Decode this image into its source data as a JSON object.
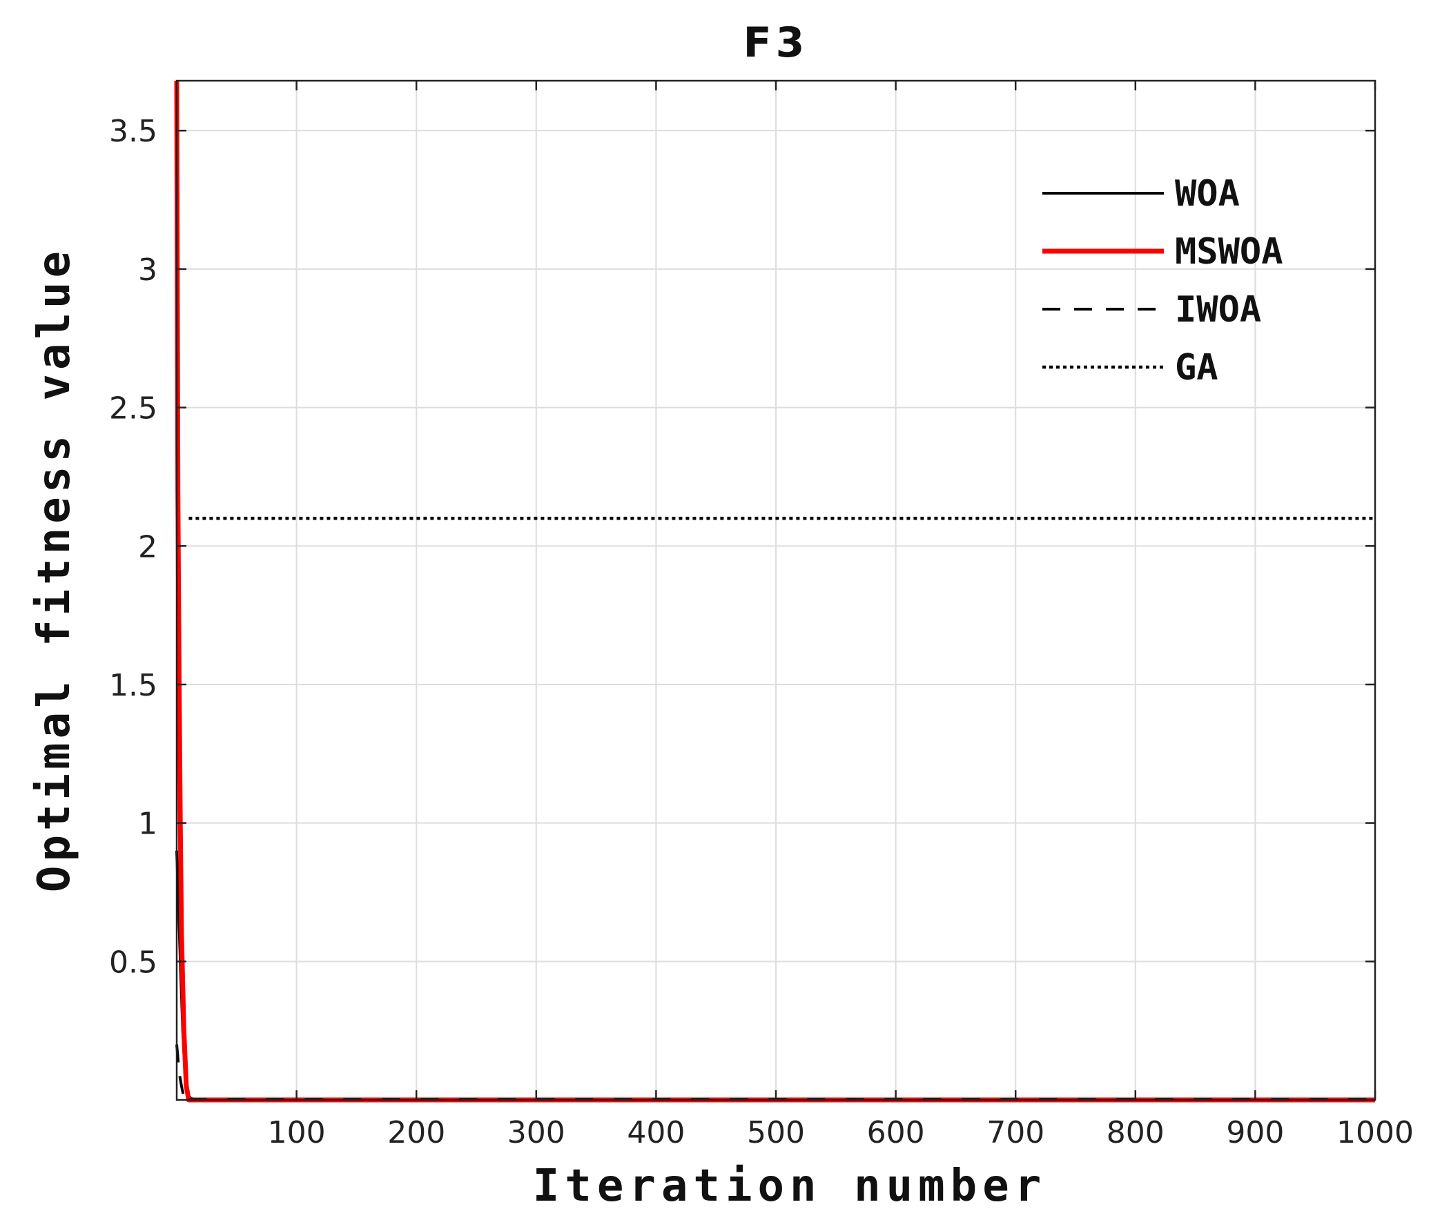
{
  "chart_data": {
    "type": "line",
    "title": "F3",
    "xlabel": "Iteration number",
    "ylabel": "Optimal fitness value",
    "xlim": [
      0,
      1000
    ],
    "ylim": [
      0,
      3.68
    ],
    "x_ticks": [
      100,
      200,
      300,
      400,
      500,
      600,
      700,
      800,
      900,
      1000
    ],
    "y_ticks": [
      0.5,
      1,
      1.5,
      2,
      2.5,
      3,
      3.5
    ],
    "x_tick_labels": [
      "100",
      "200",
      "300",
      "400",
      "500",
      "600",
      "700",
      "800",
      "900",
      "1000"
    ],
    "y_tick_labels": [
      "0.5",
      "1",
      "1.5",
      "2",
      "2.5",
      "3",
      "3.5"
    ],
    "grid": true,
    "legend_position": "top-right",
    "series": [
      {
        "name": "WOA",
        "color": "#000000",
        "style": "solid",
        "x": [
          0,
          3,
          5,
          7,
          9,
          12,
          20,
          1000
        ],
        "y": [
          0.9,
          0.5,
          0.25,
          0.08,
          0.02,
          0.005,
          0,
          0
        ]
      },
      {
        "name": "MSWOA",
        "color": "#ff0000",
        "style": "solid",
        "x": [
          0,
          1,
          2,
          3,
          4,
          6,
          8,
          10,
          1000
        ],
        "y": [
          3.68,
          2.2,
          1.5,
          1.0,
          0.6,
          0.25,
          0.05,
          0,
          0
        ]
      },
      {
        "name": "IWOA",
        "color": "#000000",
        "style": "dashed",
        "x": [
          0,
          2,
          4,
          6,
          10,
          1000
        ],
        "y": [
          0.2,
          0.1,
          0.05,
          0.01,
          0,
          0
        ]
      },
      {
        "name": "GA",
        "color": "#000000",
        "style": "dotted",
        "x": [
          10,
          1000
        ],
        "y": [
          2.1,
          2.1
        ]
      }
    ]
  }
}
